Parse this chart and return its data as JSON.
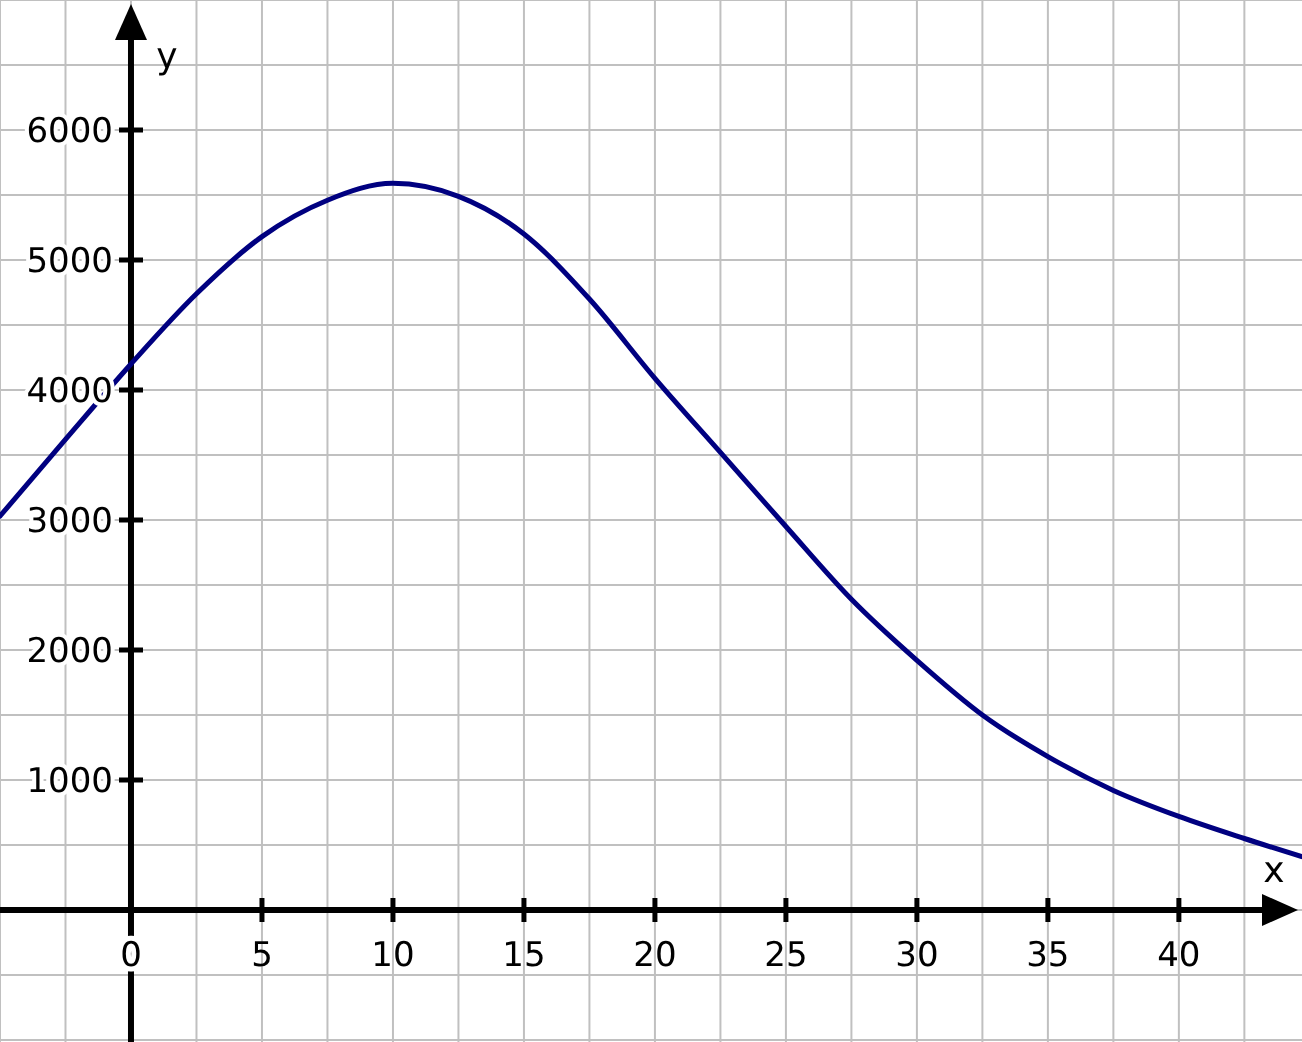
{
  "chart_data": {
    "type": "line",
    "xlabel": "x",
    "ylabel": "y",
    "x": [
      -5,
      -2.5,
      0,
      2.5,
      5,
      7.5,
      10,
      12.5,
      15,
      17.5,
      20,
      22.5,
      25,
      27.5,
      30,
      32.5,
      35,
      37.5,
      40,
      42.5,
      44.7
    ],
    "series": [
      {
        "color": "#000080",
        "values": [
          3030,
          3620,
          4200,
          4740,
          5180,
          5460,
          5590,
          5490,
          5200,
          4700,
          4090,
          3520,
          2950,
          2390,
          1920,
          1500,
          1180,
          920,
          720,
          550,
          410
        ]
      }
    ],
    "xlim": [
      -5,
      44.7
    ],
    "ylim": [
      -1000,
      7000
    ],
    "xticks": [
      0,
      5,
      10,
      15,
      20,
      25,
      30,
      35,
      40
    ],
    "yticks": [
      1000,
      2000,
      3000,
      4000,
      5000,
      6000
    ],
    "grid": true,
    "marker": "none",
    "line_style": "solid"
  }
}
